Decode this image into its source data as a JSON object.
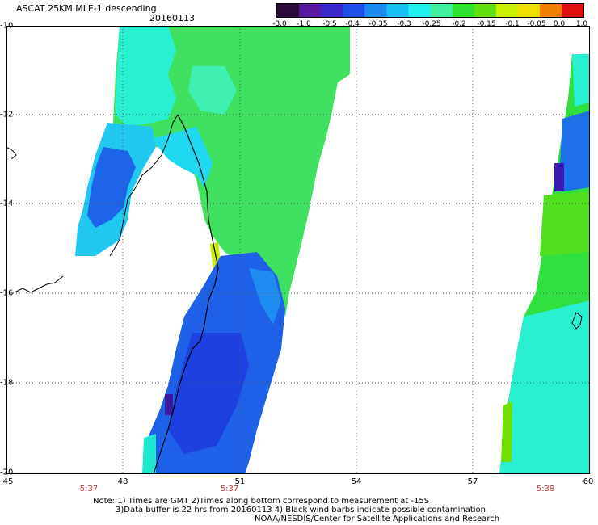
{
  "header": {
    "title": "ASCAT 25KM MLE-1 descending",
    "date": "20160113"
  },
  "colorbar": {
    "labels": [
      "-3.0",
      "-1.0",
      "-0.5",
      "-0.4",
      "-0.35",
      "-0.3",
      "-0.25",
      "-0.2",
      "-0.15",
      "-0.1",
      "-0.05",
      "0.0",
      "1.0"
    ],
    "colors": [
      "#2a0a3a",
      "#5a1aa0",
      "#3a28c8",
      "#1e50e8",
      "#1e8af0",
      "#18c0f8",
      "#20f0f0",
      "#40f0a0",
      "#30e030",
      "#60e010",
      "#c8f000",
      "#f0e000",
      "#f08000",
      "#e01010"
    ]
  },
  "axes": {
    "y_ticks": [
      "-10",
      "-12",
      "-14",
      "-16",
      "-18",
      "-20"
    ],
    "x_ticks": [
      "45",
      "48",
      "51",
      "54",
      "57",
      "60"
    ]
  },
  "times": [
    "5:37",
    "5:37",
    "5:38"
  ],
  "notes": [
    "Note: 1) Times are GMT 2)Times along bottom correspond to measurement at -15S",
    "3)Data buffer is 22 hrs from 20160113 4) Black wind barbs indicate possible contamination",
    "NOAA/NESDIS/Center for Satellite Applications and Research"
  ]
}
